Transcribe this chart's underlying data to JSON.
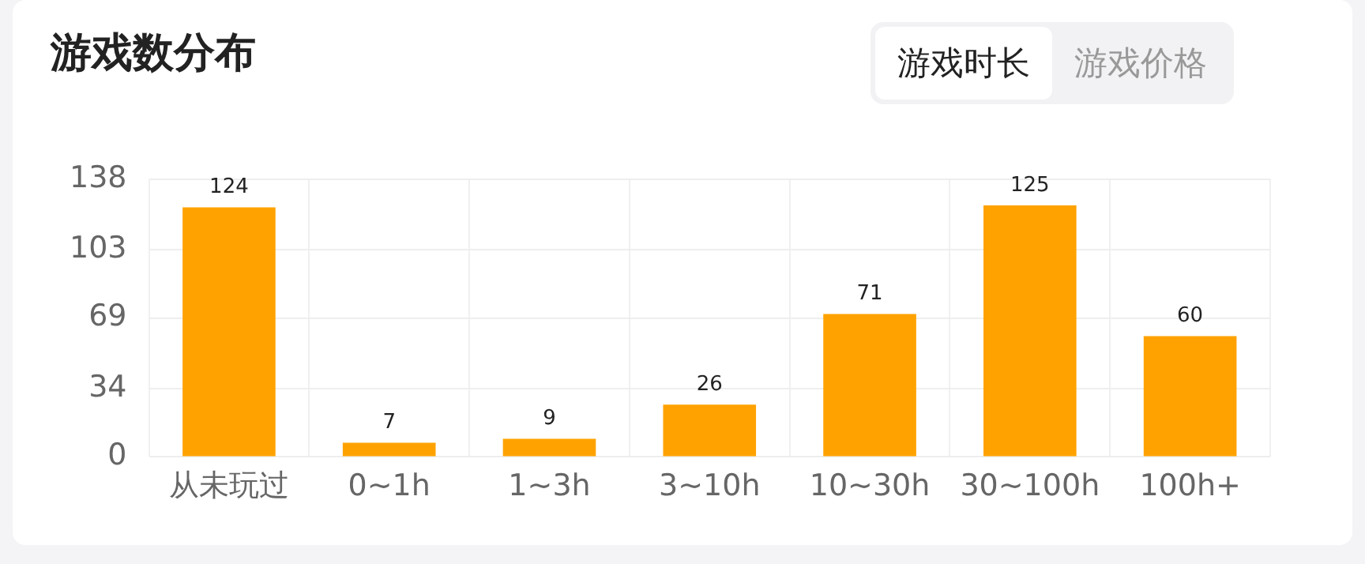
{
  "chart_data": {
    "type": "bar",
    "title": "游戏数分布",
    "annotations": [
      "游戏时长",
      "游戏价格"
    ],
    "categories": [
      "从未玩过",
      "0~1h",
      "1~3h",
      "3~10h",
      "10~30h",
      "30~100h",
      "100h+"
    ],
    "values": [
      124,
      7,
      9,
      26,
      71,
      125,
      60
    ],
    "color": "#ffa200",
    "ylim": [
      0,
      138
    ],
    "yticks": [
      0,
      34,
      69,
      103,
      138
    ],
    "grid": true,
    "data_labels": true
  }
}
